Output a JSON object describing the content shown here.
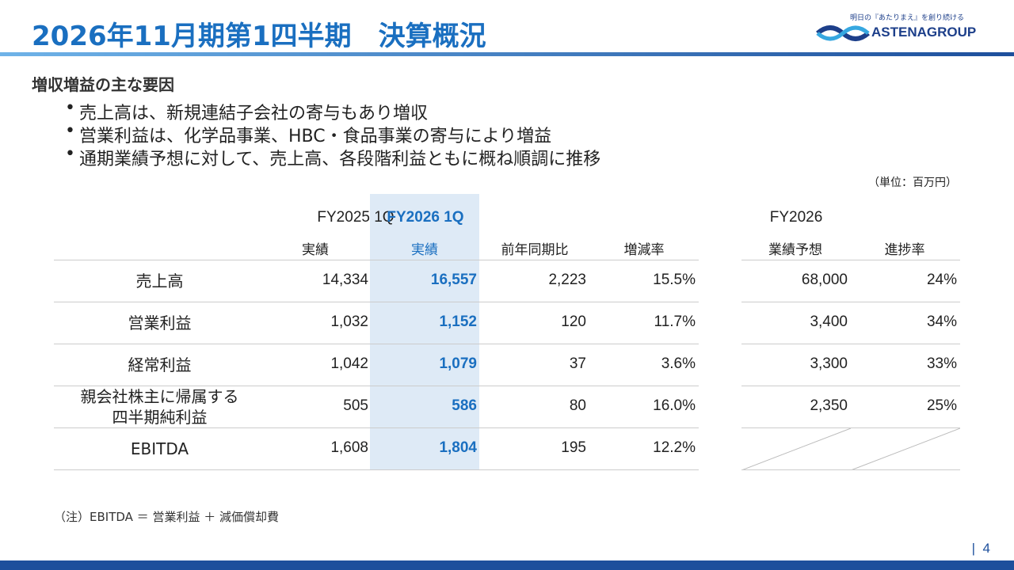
{
  "header": {
    "title": "2026年11月期第1四半期　決算概況",
    "logo_tagline": "明日の『あたりまえ』を創り続ける",
    "logo_name": "ASTENAGROUP"
  },
  "section": {
    "heading": "増収増益の主な要因",
    "bullets": [
      "売上高は、新規連結子会社の寄与もあり増収",
      "営業利益は、化学品事業、HBC・食品事業の寄与により増益",
      "通期業績予想に対して、売上高、各段階利益ともに概ね順調に推移"
    ]
  },
  "table": {
    "unit": "（単位：百万円）",
    "group_headers": [
      "FY2025 1Q",
      "FY2026 1Q",
      "FY2026"
    ],
    "column_headers": [
      "実績",
      "実績",
      "前年同期比",
      "増減率",
      "業績予想",
      "進捗率"
    ],
    "rows": [
      {
        "label": [
          "売上高"
        ],
        "cells": [
          "14,334",
          "16,557",
          "2,223",
          "15.5%",
          "68,000",
          "24%"
        ]
      },
      {
        "label": [
          "営業利益"
        ],
        "cells": [
          "1,032",
          "1,152",
          "120",
          "11.7%",
          "3,400",
          "34%"
        ]
      },
      {
        "label": [
          "経常利益"
        ],
        "cells": [
          "1,042",
          "1,079",
          "37",
          "3.6%",
          "3,300",
          "33%"
        ]
      },
      {
        "label": [
          "親会社株主に帰属する",
          "四半期純利益"
        ],
        "cells": [
          "505",
          "586",
          "80",
          "16.0%",
          "2,350",
          "25%"
        ]
      },
      {
        "label": [
          "EBITDA"
        ],
        "cells": [
          "1,608",
          "1,804",
          "195",
          "12.2%"
        ]
      }
    ]
  },
  "note": "（注）EBITDA ＝ 営業利益 ＋ 減価償却費",
  "page_number": "4"
}
